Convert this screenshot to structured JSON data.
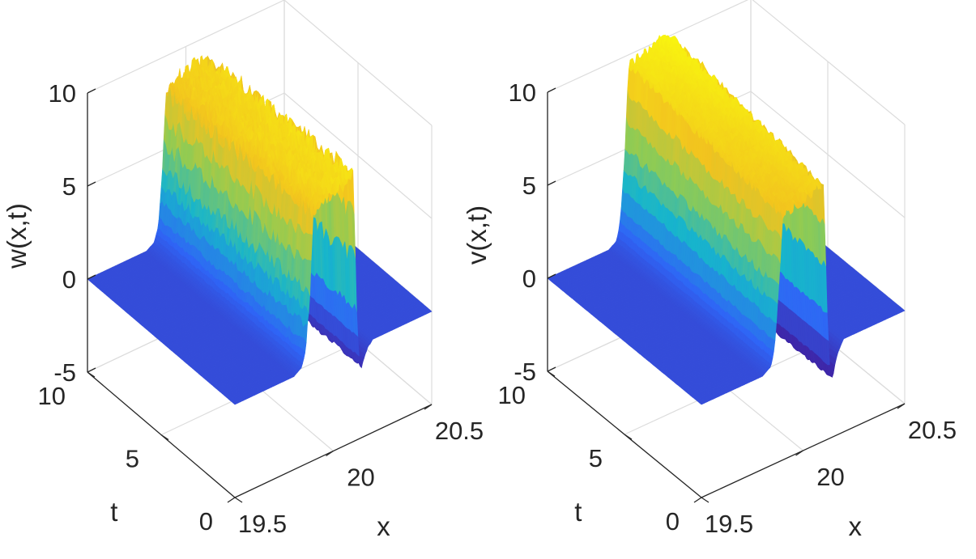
{
  "chart_data": [
    {
      "type": "surface",
      "zlabel": "w(x,t)",
      "xlabel": "x",
      "ylabel": "t",
      "xlim": [
        19.5,
        20.5
      ],
      "ylim": [
        0,
        10
      ],
      "zlim": [
        -5,
        10
      ],
      "x_ticks": [
        19.5,
        20,
        20.5
      ],
      "y_ticks": [
        0,
        5,
        10
      ],
      "z_ticks": [
        -5,
        0,
        5,
        10
      ],
      "x_tick_labels": [
        "19.5",
        "20",
        "20.5"
      ],
      "y_tick_labels": [
        "0",
        "5",
        "10"
      ],
      "z_tick_labels": [
        "-5",
        "0",
        "5",
        "10"
      ],
      "grid": true,
      "colormap": "parula",
      "colors": [
        "#3e26a8",
        "#2f65f6",
        "#17b5cc",
        "#8fcb54",
        "#f2c31f",
        "#f9fb0e"
      ],
      "profile_samples": {
        "x": [
          19.5,
          19.8,
          19.84,
          19.86,
          19.88,
          19.9,
          19.95,
          20.0,
          20.03,
          20.06,
          20.08,
          20.1,
          20.11,
          20.12,
          20.13,
          20.14,
          20.17,
          20.2,
          20.5
        ],
        "z": [
          0.0,
          0.0,
          0.3,
          1.2,
          4.0,
          8.4,
          9.0,
          9.1,
          9.2,
          9.3,
          9.4,
          9.5,
          6.0,
          1.5,
          -0.5,
          -1.3,
          -0.4,
          0.0,
          0.0
        ]
      },
      "t_trend_at_peak": {
        "t": [
          0,
          10
        ],
        "z": [
          9.4,
          9.0
        ]
      },
      "noise_amplitude": 0.5
    },
    {
      "type": "surface",
      "zlabel": "v(x,t)",
      "xlabel": "x",
      "ylabel": "t",
      "xlim": [
        19.5,
        20.5
      ],
      "ylim": [
        0,
        10
      ],
      "zlim": [
        -5,
        10
      ],
      "x_ticks": [
        19.5,
        20,
        20.5
      ],
      "y_ticks": [
        0,
        5,
        10
      ],
      "z_ticks": [
        -5,
        0,
        5,
        10
      ],
      "x_tick_labels": [
        "19.5",
        "20",
        "20.5"
      ],
      "y_tick_labels": [
        "0",
        "5",
        "10"
      ],
      "z_tick_labels": [
        "-5",
        "0",
        "5",
        "10"
      ],
      "grid": true,
      "colormap": "parula",
      "colors": [
        "#3e26a8",
        "#2f65f6",
        "#17b5cc",
        "#8fcb54",
        "#f2c31f",
        "#f9fb0e"
      ],
      "profile_samples": {
        "x": [
          19.5,
          19.8,
          19.84,
          19.86,
          19.88,
          19.9,
          19.95,
          20.0,
          20.03,
          20.06,
          20.08,
          20.1,
          20.11,
          20.12,
          20.13,
          20.14,
          20.17,
          20.2,
          20.5
        ],
        "z": [
          0.0,
          0.0,
          0.3,
          1.5,
          5.0,
          9.8,
          10.0,
          10.1,
          10.3,
          10.5,
          10.6,
          10.5,
          6.5,
          1.5,
          -1.0,
          -2.0,
          -0.6,
          0.0,
          0.0
        ]
      },
      "t_trend_at_peak": {
        "t": [
          0,
          10
        ],
        "z": [
          8.8,
          10.2
        ]
      },
      "noise_amplitude": 0.25
    }
  ]
}
